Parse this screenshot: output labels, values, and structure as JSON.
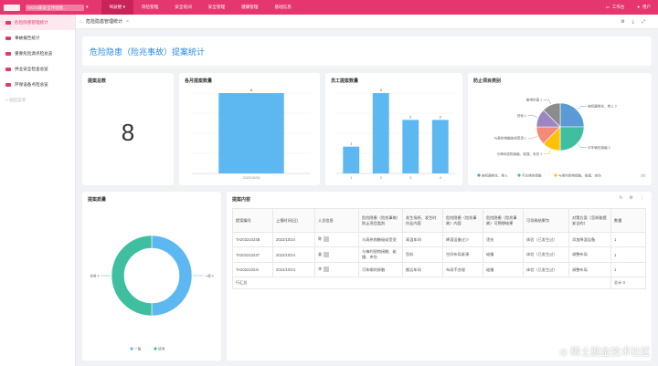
{
  "topbar": {
    "app_title": "XXXX家安全环境管...",
    "nav": [
      {
        "label": "驾驶舱",
        "active": true
      },
      {
        "label": "风险管理",
        "active": false
      },
      {
        "label": "安全培训",
        "active": false
      },
      {
        "label": "安全管理",
        "active": false
      },
      {
        "label": "健康管理",
        "active": false
      },
      {
        "label": "基础信息",
        "active": false
      }
    ],
    "workbench": "工作台",
    "user": "用户"
  },
  "sidebar": {
    "items": [
      {
        "label": "危险隐患管理统计",
        "active": true
      },
      {
        "label": "事故报告统计",
        "active": false
      },
      {
        "label": "重要危险源点检总览",
        "active": false
      },
      {
        "label": "供业安全检查总览",
        "active": false
      },
      {
        "label": "环保设备点检总览",
        "active": false
      },
      {
        "label": "< 收起菜单",
        "active": false,
        "muted": true
      }
    ]
  },
  "breadcrumb": {
    "current": "危险隐患管理统计"
  },
  "banner": {
    "title": "危险隐患（险兆事故）提案统计"
  },
  "cards": {
    "total": {
      "title": "提案总数",
      "value": "8"
    },
    "monthly": {
      "title": "各月提案数量"
    },
    "staff": {
      "title": "员工提案数量"
    },
    "project": {
      "title": "防止项目类别"
    },
    "quality": {
      "title": "提案质量"
    },
    "content": {
      "title": "提案内容"
    }
  },
  "chart_data": [
    {
      "type": "bar",
      "title": "各月提案数量",
      "categories": [
        "2022/10/24"
      ],
      "values": [
        8
      ],
      "ylim": [
        0,
        8
      ]
    },
    {
      "type": "bar",
      "title": "员工提案数量",
      "categories": [
        "1",
        "2",
        "3",
        "4"
      ],
      "values": [
        1,
        3,
        2,
        2
      ],
      "ylim": [
        0,
        3
      ]
    },
    {
      "type": "pie",
      "title": "防止项目类别",
      "series": [
        {
          "name": "被机器卷住、卷入",
          "value": 2,
          "color": "#5b9bd5",
          "label": "被机器卷住、卷入  2"
        },
        {
          "name": "可车辆的接触",
          "value": 2,
          "color": "#3fbfa0",
          "label": "可车辆的接触  2"
        },
        {
          "name": "与锋利锐物接触、碰撞、夹伤",
          "value": 1,
          "color": "#ffc107",
          "label": "与锋利锐物接触、碰撞、夹伤  1"
        },
        {
          "name": "与高热物触碰或受烫",
          "value": 1,
          "color": "#f48b7a",
          "label": "与高热物触碰或受烫  1"
        },
        {
          "name": "其他",
          "value": 1,
          "color": "#9b86c4",
          "label": "其他  1"
        },
        {
          "name": "触电伤害",
          "value": 1,
          "color": "#8c8c8c",
          "label": "触电伤害  1"
        }
      ],
      "legend": [
        "被机器卷住、卷入",
        "可车辆的接触",
        "与锋利锐物接触、碰撞、夹伤"
      ],
      "legend_page": "1/3"
    },
    {
      "type": "pie",
      "title": "提案质量",
      "series": [
        {
          "name": "一般",
          "value": 4,
          "color": "#5db8f2",
          "label": "一般  4"
        },
        {
          "name": "优秀",
          "value": 4,
          "color": "#3fbfa0",
          "label": "优秀  4"
        }
      ],
      "legend": [
        "一般",
        "优秀"
      ]
    }
  ],
  "table": {
    "headers": [
      "提案编号",
      "上报时间(日)",
      "人员信息",
      "危险隐患（险兆事故）防止项目类别",
      "发生场所、发生时作业内容",
      "危险隐患（险兆事故）内容",
      "危险隐患（险兆事故）可预想结果",
      "可导致结果为",
      "对策方案（怎样能提安全的）",
      "数量"
    ],
    "rows": [
      [
        "TA20221024B",
        "2022/10/24",
        "陈",
        "与高热物触碰或受烫",
        "高温车间",
        "降温设备过少",
        "烫伤",
        "体验（已发生过）",
        "添加降温设备",
        "1"
      ],
      [
        "TA20221024T",
        "2022/10/24",
        "姜",
        "与锋利锐物接触、碰撞、夹伤",
        "型料",
        "空间布局紧凑",
        "碰撞",
        "体验（已发生过）",
        "调整布局",
        "1"
      ],
      [
        "TA20221024I",
        "2022/10/24",
        "李",
        "可车辆的接触",
        "搬运车间",
        "布局不合理",
        "碰撞",
        "体验（已发生过）",
        "调整布局",
        "1"
      ]
    ],
    "footer_label": "行汇总",
    "footer_total": "总计 3"
  },
  "watermark": "稀土掘金技术社区"
}
